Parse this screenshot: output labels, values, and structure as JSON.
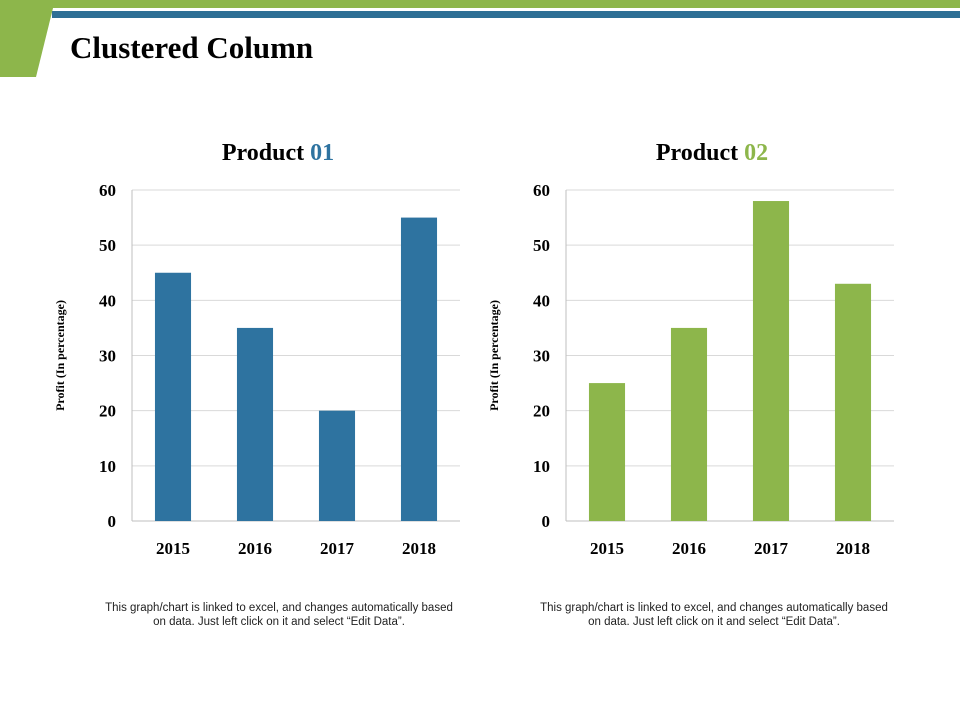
{
  "slide": {
    "title": "Clustered Column",
    "colors": {
      "accent_green": "#8db64b",
      "accent_blue": "#2e6f95"
    }
  },
  "chart_data": [
    {
      "type": "bar",
      "title": "Product 01",
      "title_parts": [
        "Product",
        "01"
      ],
      "categories": [
        "2015",
        "2016",
        "2017",
        "2018"
      ],
      "series": [
        {
          "values": [
            45,
            35,
            20,
            55
          ],
          "color": "#2e73a0"
        }
      ],
      "ylabel": "Profit  (In percentage)",
      "ylim": [
        0,
        60
      ],
      "yticks": [
        0,
        10,
        20,
        30,
        40,
        50,
        60
      ],
      "grid": true,
      "caption": "This graph/chart is linked to excel, and changes automatically based on data. Just left click on it and select “Edit Data”."
    },
    {
      "type": "bar",
      "title": "Product 02",
      "title_parts": [
        "Product",
        "02"
      ],
      "categories": [
        "2015",
        "2016",
        "2017",
        "2018"
      ],
      "series": [
        {
          "values": [
            25,
            35,
            58,
            43
          ],
          "color": "#8db64b"
        }
      ],
      "ylabel": "Profit  (In percentage)",
      "ylim": [
        0,
        60
      ],
      "yticks": [
        0,
        10,
        20,
        30,
        40,
        50,
        60
      ],
      "grid": true,
      "caption": "This graph/chart is linked to excel, and changes automatically based on data. Just left click on it and select “Edit Data”."
    }
  ]
}
